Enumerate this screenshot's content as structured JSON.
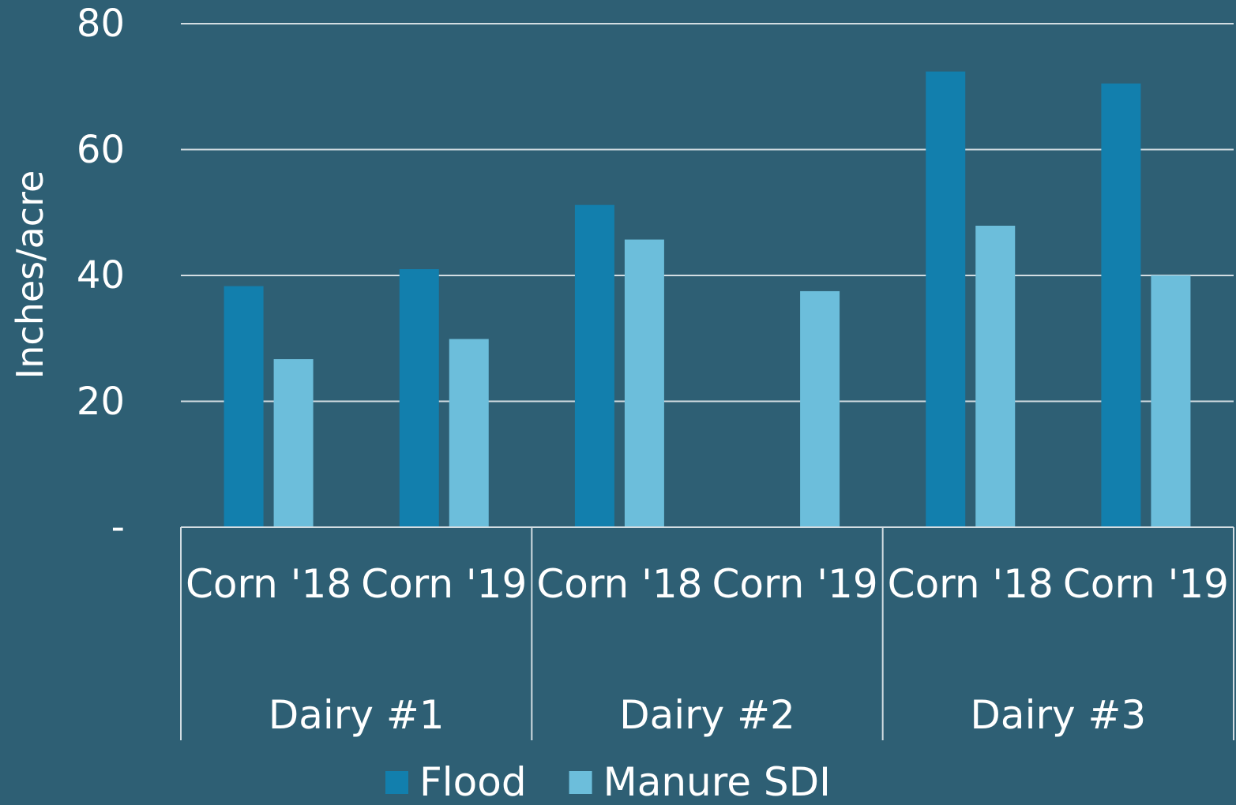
{
  "chart_data": {
    "type": "bar",
    "y_label": "Inches/acre",
    "categories": [
      "Corn '18",
      "Corn '19",
      "Corn '18",
      "Corn '19",
      "Corn '18",
      "Corn '19"
    ],
    "groups": [
      "Dairy #1",
      "Dairy #2",
      "Dairy #3"
    ],
    "series": [
      {
        "name": "Flood",
        "color": "#127fad",
        "values": [
          38.3,
          41.0,
          51.2,
          null,
          72.4,
          70.5
        ]
      },
      {
        "name": "Manure SDI",
        "color": "#6cbedb",
        "values": [
          26.7,
          29.9,
          45.7,
          37.5,
          47.9,
          40.0
        ]
      }
    ],
    "ylim": [
      0,
      80
    ],
    "yticks": [
      {
        "value": 0,
        "label": "-"
      },
      20,
      40,
      60,
      80
    ],
    "grid": true,
    "legend": "bottom"
  }
}
